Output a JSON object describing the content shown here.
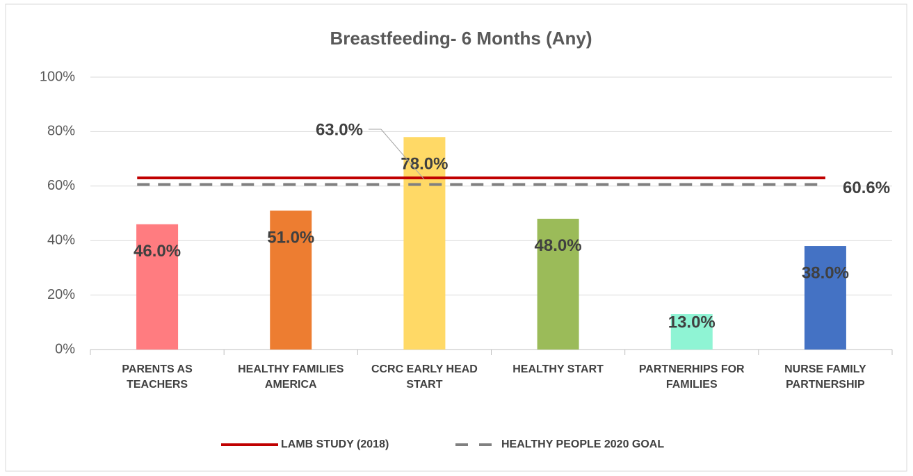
{
  "chart_data": {
    "type": "bar",
    "title": "Breastfeeding- 6 Months (Any)",
    "categories": [
      "PARENTS AS TEACHERS",
      "HEALTHY FAMILIES AMERICA",
      "CCRC EARLY HEAD START",
      "HEALTHY START",
      "PARTNERHIPS FOR FAMILIES",
      "NURSE FAMILY PARTNERSHIP"
    ],
    "values": [
      46,
      51,
      78,
      48,
      13,
      38
    ],
    "value_labels": [
      "46.0%",
      "51.0%",
      "78.0%",
      "48.0%",
      "13.0%",
      "38.0%"
    ],
    "colors": [
      "#ff7c80",
      "#ed7d31",
      "#ffd966",
      "#9bbb59",
      "#8ff4d4",
      "#4472c4"
    ],
    "lines": [
      {
        "name": "LAMB STUDY (2018)",
        "color": "#c00000",
        "value": 63,
        "value_label": "63.0%",
        "style": "solid"
      },
      {
        "name": "HEALTHY PEOPLE 2020 GOAL",
        "color": "#808080",
        "value": 60.6,
        "value_label": "60.6%",
        "style": "dashed"
      }
    ],
    "ylim": [
      0,
      100
    ],
    "yticks": [
      {
        "value": 0,
        "label": "0%"
      },
      {
        "value": 20,
        "label": "20%"
      },
      {
        "value": 40,
        "label": "40%"
      },
      {
        "value": 60,
        "label": "60%"
      },
      {
        "value": 80,
        "label": "80%"
      },
      {
        "value": 100,
        "label": "100%"
      }
    ],
    "grid": true,
    "legend": "bottom"
  }
}
